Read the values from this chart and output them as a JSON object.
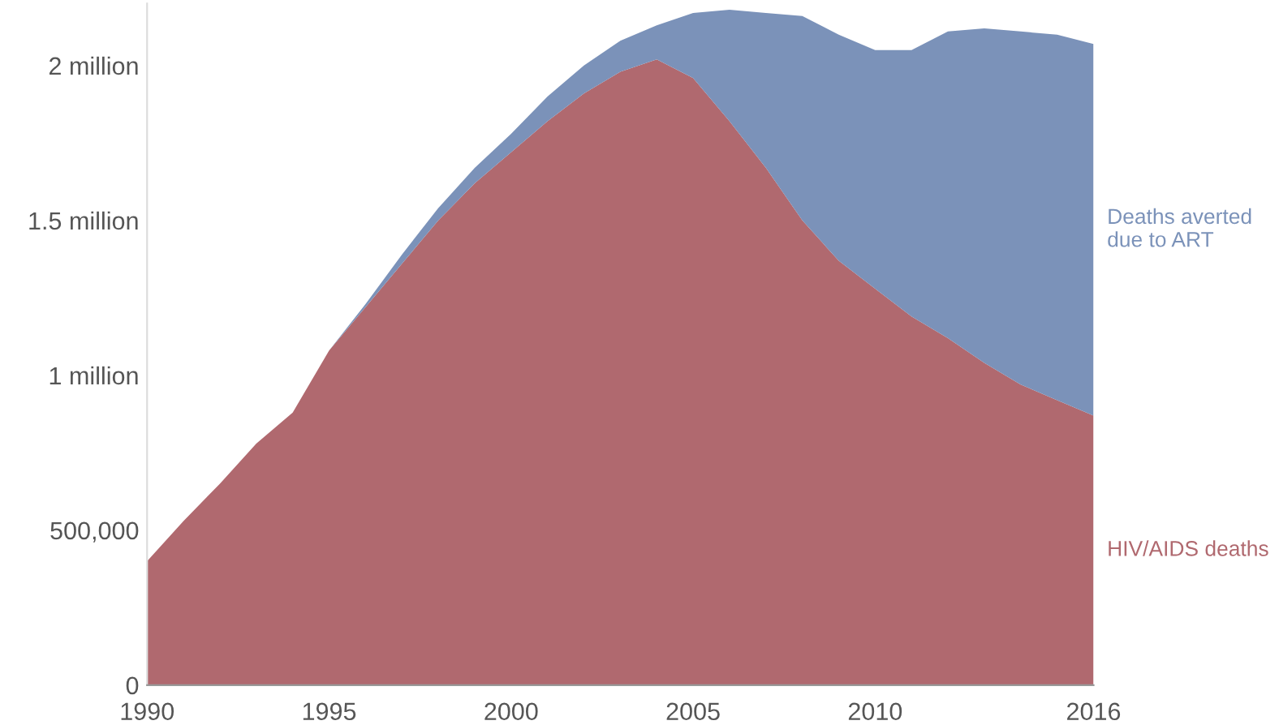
{
  "chart_data": {
    "type": "area",
    "stacked": true,
    "x": [
      1990,
      1991,
      1992,
      1993,
      1994,
      1995,
      1996,
      1997,
      1998,
      1999,
      2000,
      2001,
      2002,
      2003,
      2004,
      2005,
      2006,
      2007,
      2008,
      2009,
      2010,
      2011,
      2012,
      2013,
      2014,
      2015,
      2016
    ],
    "series": [
      {
        "name": "HIV/AIDS deaths",
        "color": "#b0696f",
        "values": [
          400000,
          530000,
          650000,
          780000,
          880000,
          1080000,
          1220000,
          1360000,
          1500000,
          1620000,
          1720000,
          1820000,
          1910000,
          1980000,
          2020000,
          1960000,
          1820000,
          1670000,
          1500000,
          1370000,
          1280000,
          1190000,
          1120000,
          1040000,
          970000,
          920000,
          870000
        ]
      },
      {
        "name": "Deaths averted\ndue to ART",
        "color": "#7b92b9",
        "values": [
          0,
          0,
          0,
          0,
          0,
          0,
          10000,
          30000,
          40000,
          50000,
          60000,
          80000,
          90000,
          100000,
          110000,
          210000,
          360000,
          500000,
          660000,
          730000,
          770000,
          860000,
          990000,
          1080000,
          1140000,
          1180000,
          1200000
        ]
      }
    ],
    "xlim": [
      1990,
      2016
    ],
    "xticks": [
      1990,
      1995,
      2000,
      2005,
      2010,
      2016
    ],
    "ylim": [
      0,
      2200000
    ],
    "yticks": [
      {
        "value": 0,
        "label": "0"
      },
      {
        "value": 500000,
        "label": "500,000"
      },
      {
        "value": 1000000,
        "label": "1 million"
      },
      {
        "value": 1500000,
        "label": "1.5 million"
      },
      {
        "value": 2000000,
        "label": "2 million"
      }
    ],
    "grid": false,
    "legend": false
  }
}
